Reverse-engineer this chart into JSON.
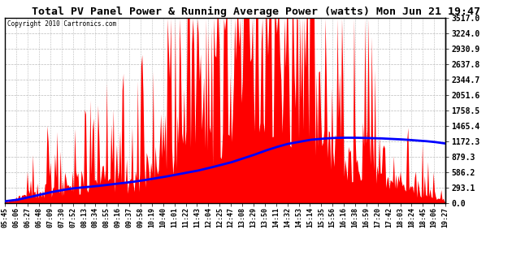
{
  "title": "Total PV Panel Power & Running Average Power (watts) Mon Jun 21 19:47",
  "copyright": "Copyright 2010 Cartronics.com",
  "ylabel_right_values": [
    3517.0,
    3224.0,
    2930.9,
    2637.8,
    2344.7,
    2051.6,
    1758.5,
    1465.4,
    1172.3,
    879.3,
    586.2,
    293.1,
    0.0
  ],
  "ymax": 3517.0,
  "ymin": 0.0,
  "background_color": "#ffffff",
  "plot_bg_color": "#ffffff",
  "grid_color": "#bbbbbb",
  "area_color": "#ff0000",
  "line_color": "#0000ff",
  "title_fontsize": 11,
  "x_labels": [
    "05:45",
    "06:06",
    "06:27",
    "06:48",
    "07:09",
    "07:30",
    "07:52",
    "08:13",
    "08:34",
    "08:55",
    "09:16",
    "09:37",
    "09:58",
    "10:19",
    "10:40",
    "11:01",
    "11:22",
    "11:43",
    "12:04",
    "12:25",
    "12:47",
    "13:08",
    "13:29",
    "13:50",
    "14:11",
    "14:32",
    "14:53",
    "15:14",
    "15:35",
    "15:56",
    "16:16",
    "16:38",
    "16:59",
    "17:20",
    "17:42",
    "18:03",
    "18:24",
    "18:45",
    "19:06",
    "19:27"
  ],
  "pv_envelope": [
    30,
    80,
    180,
    280,
    350,
    380,
    430,
    420,
    470,
    520,
    550,
    600,
    680,
    750,
    820,
    900,
    1000,
    1100,
    1200,
    1350,
    1450,
    1600,
    1750,
    1900,
    2000,
    2050,
    2000,
    1900,
    1750,
    1600,
    1400,
    1100,
    900,
    750,
    600,
    500,
    380,
    280,
    150,
    40
  ],
  "running_avg_shape": [
    30,
    55,
    100,
    150,
    200,
    240,
    275,
    295,
    315,
    340,
    365,
    390,
    420,
    455,
    490,
    530,
    570,
    610,
    660,
    715,
    770,
    840,
    910,
    990,
    1060,
    1120,
    1160,
    1200,
    1220,
    1235,
    1240,
    1240,
    1235,
    1230,
    1220,
    1210,
    1195,
    1180,
    1160,
    1130
  ]
}
